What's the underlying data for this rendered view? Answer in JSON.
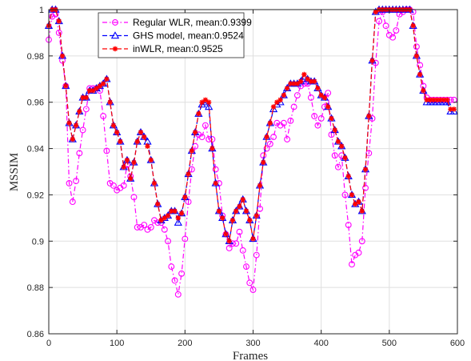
{
  "chart_data": {
    "type": "line",
    "xlabel": "Frames",
    "ylabel": "MSSIM",
    "xlim": [
      0,
      600
    ],
    "ylim": [
      0.86,
      1
    ],
    "xticks": [
      0,
      100,
      200,
      300,
      400,
      500,
      600
    ],
    "yticks": [
      0.86,
      0.88,
      0.9,
      0.92,
      0.94,
      0.96,
      0.98,
      1
    ],
    "ytick_labels": [
      "0.86",
      "0.88",
      "0.9",
      "0.92",
      "0.94",
      "0.96",
      "0.98",
      "1"
    ],
    "grid": true,
    "legend_position": "top-center",
    "series": [
      {
        "name": "Regular WLR, mean:0.9399",
        "color": "#ff00ff",
        "line_style": "dash-dot",
        "marker": "circle",
        "x": [
          0,
          5,
          10,
          15,
          20,
          25,
          30,
          35,
          40,
          45,
          50,
          55,
          60,
          65,
          70,
          75,
          80,
          85,
          90,
          95,
          100,
          105,
          110,
          115,
          120,
          125,
          130,
          135,
          140,
          145,
          150,
          155,
          160,
          165,
          170,
          175,
          180,
          185,
          190,
          195,
          200,
          205,
          210,
          215,
          220,
          225,
          230,
          235,
          240,
          245,
          250,
          255,
          260,
          265,
          270,
          275,
          280,
          285,
          290,
          295,
          300,
          305,
          310,
          315,
          320,
          325,
          330,
          335,
          340,
          345,
          350,
          355,
          360,
          365,
          370,
          375,
          380,
          385,
          390,
          395,
          400,
          405,
          410,
          415,
          420,
          425,
          430,
          435,
          440,
          445,
          450,
          455,
          460,
          465,
          470,
          475,
          480,
          485,
          490,
          495,
          500,
          505,
          510,
          515,
          520,
          525,
          530,
          535,
          540,
          545,
          550,
          555,
          560,
          565,
          570,
          575,
          580,
          585,
          590,
          595
        ],
        "y": [
          0.987,
          0.997,
          0.998,
          0.99,
          0.978,
          0.967,
          0.925,
          0.917,
          0.926,
          0.938,
          0.948,
          0.957,
          0.966,
          0.966,
          0.966,
          0.965,
          0.954,
          0.939,
          0.925,
          0.924,
          0.922,
          0.923,
          0.924,
          0.933,
          0.928,
          0.919,
          0.906,
          0.906,
          0.907,
          0.905,
          0.906,
          0.909,
          0.908,
          0.908,
          0.905,
          0.9,
          0.889,
          0.883,
          0.877,
          0.886,
          0.901,
          0.917,
          0.931,
          0.941,
          0.946,
          0.945,
          0.95,
          0.944,
          0.944,
          0.931,
          0.925,
          0.911,
          0.903,
          0.897,
          0.899,
          0.899,
          0.904,
          0.896,
          0.889,
          0.882,
          0.879,
          0.894,
          0.914,
          0.937,
          0.94,
          0.942,
          0.945,
          0.951,
          0.95,
          0.951,
          0.944,
          0.952,
          0.958,
          0.963,
          0.967,
          0.968,
          0.968,
          0.962,
          0.954,
          0.95,
          0.953,
          0.958,
          0.964,
          0.946,
          0.937,
          0.932,
          0.937,
          0.92,
          0.907,
          0.89,
          0.894,
          0.895,
          0.9,
          0.923,
          0.938,
          0.953,
          0.977,
          0.995,
          0.999,
          0.993,
          0.989,
          0.988,
          0.991,
          0.998,
          0.999,
          1.0,
          1.0,
          0.999,
          0.984,
          0.976,
          0.967,
          0.962,
          0.961,
          0.961,
          0.961,
          0.961,
          0.961,
          0.961,
          0.961,
          0.961
        ]
      },
      {
        "name": "GHS model, mean:0.9524",
        "color": "#0000ff",
        "line_style": "dashed",
        "marker": "triangle",
        "x": [
          0,
          5,
          10,
          15,
          20,
          25,
          30,
          35,
          40,
          45,
          50,
          55,
          60,
          65,
          70,
          75,
          80,
          85,
          90,
          95,
          100,
          105,
          110,
          115,
          120,
          125,
          130,
          135,
          140,
          145,
          150,
          155,
          160,
          165,
          170,
          175,
          180,
          185,
          190,
          195,
          200,
          205,
          210,
          215,
          220,
          225,
          230,
          235,
          240,
          245,
          250,
          255,
          260,
          265,
          270,
          275,
          280,
          285,
          290,
          295,
          300,
          305,
          310,
          315,
          320,
          325,
          330,
          335,
          340,
          345,
          350,
          355,
          360,
          365,
          370,
          375,
          380,
          385,
          390,
          395,
          400,
          405,
          410,
          415,
          420,
          425,
          430,
          435,
          440,
          445,
          450,
          455,
          460,
          465,
          470,
          475,
          480,
          485,
          490,
          495,
          500,
          505,
          510,
          515,
          520,
          525,
          530,
          535,
          540,
          545,
          550,
          555,
          560,
          565,
          570,
          575,
          580,
          585,
          590,
          595
        ],
        "y": [
          0.993,
          1.0,
          1.0,
          0.995,
          0.98,
          0.967,
          0.951,
          0.944,
          0.95,
          0.956,
          0.962,
          0.962,
          0.965,
          0.965,
          0.966,
          0.967,
          0.968,
          0.97,
          0.96,
          0.95,
          0.947,
          0.943,
          0.932,
          0.935,
          0.927,
          0.934,
          0.943,
          0.947,
          0.945,
          0.943,
          0.935,
          0.925,
          0.916,
          0.909,
          0.91,
          0.911,
          0.913,
          0.913,
          0.908,
          0.912,
          0.919,
          0.929,
          0.939,
          0.947,
          0.955,
          0.959,
          0.96,
          0.958,
          0.94,
          0.925,
          0.913,
          0.91,
          0.903,
          0.9,
          0.909,
          0.913,
          0.915,
          0.918,
          0.913,
          0.909,
          0.901,
          0.911,
          0.924,
          0.934,
          0.945,
          0.951,
          0.957,
          0.959,
          0.96,
          0.963,
          0.966,
          0.968,
          0.968,
          0.968,
          0.969,
          0.971,
          0.97,
          0.969,
          0.969,
          0.966,
          0.963,
          0.962,
          0.958,
          0.953,
          0.948,
          0.943,
          0.941,
          0.936,
          0.928,
          0.92,
          0.916,
          0.917,
          0.913,
          0.931,
          0.954,
          0.978,
          0.999,
          1.0,
          1.0,
          1.0,
          1.0,
          1.0,
          1.0,
          1.0,
          1.0,
          1.0,
          1.0,
          0.993,
          0.98,
          0.972,
          0.965,
          0.96,
          0.96,
          0.96,
          0.96,
          0.96,
          0.96,
          0.96,
          0.956,
          0.956
        ]
      },
      {
        "name": "inWLR, mean:0.9525",
        "color": "#ff0000",
        "line_style": "dashed",
        "marker": "star",
        "x": [
          0,
          5,
          10,
          15,
          20,
          25,
          30,
          35,
          40,
          45,
          50,
          55,
          60,
          65,
          70,
          75,
          80,
          85,
          90,
          95,
          100,
          105,
          110,
          115,
          120,
          125,
          130,
          135,
          140,
          145,
          150,
          155,
          160,
          165,
          170,
          175,
          180,
          185,
          190,
          195,
          200,
          205,
          210,
          215,
          220,
          225,
          230,
          235,
          240,
          245,
          250,
          255,
          260,
          265,
          270,
          275,
          280,
          285,
          290,
          295,
          300,
          305,
          310,
          315,
          320,
          325,
          330,
          335,
          340,
          345,
          350,
          355,
          360,
          365,
          370,
          375,
          380,
          385,
          390,
          395,
          400,
          405,
          410,
          415,
          420,
          425,
          430,
          435,
          440,
          445,
          450,
          455,
          460,
          465,
          470,
          475,
          480,
          485,
          490,
          495,
          500,
          505,
          510,
          515,
          520,
          525,
          530,
          535,
          540,
          545,
          550,
          555,
          560,
          565,
          570,
          575,
          580,
          585,
          590,
          595
        ],
        "y": [
          0.993,
          1.0,
          1.0,
          0.995,
          0.98,
          0.967,
          0.951,
          0.944,
          0.95,
          0.956,
          0.962,
          0.962,
          0.965,
          0.965,
          0.966,
          0.967,
          0.968,
          0.97,
          0.96,
          0.95,
          0.947,
          0.943,
          0.932,
          0.935,
          0.927,
          0.934,
          0.943,
          0.947,
          0.945,
          0.941,
          0.935,
          0.925,
          0.916,
          0.909,
          0.91,
          0.911,
          0.913,
          0.913,
          0.91,
          0.912,
          0.919,
          0.929,
          0.939,
          0.947,
          0.955,
          0.96,
          0.961,
          0.96,
          0.94,
          0.925,
          0.913,
          0.91,
          0.903,
          0.9,
          0.909,
          0.913,
          0.915,
          0.918,
          0.913,
          0.909,
          0.901,
          0.911,
          0.924,
          0.934,
          0.945,
          0.951,
          0.958,
          0.96,
          0.961,
          0.963,
          0.966,
          0.968,
          0.968,
          0.968,
          0.969,
          0.972,
          0.97,
          0.969,
          0.969,
          0.966,
          0.963,
          0.962,
          0.958,
          0.953,
          0.948,
          0.943,
          0.941,
          0.936,
          0.928,
          0.92,
          0.916,
          0.917,
          0.913,
          0.931,
          0.954,
          0.978,
          0.999,
          1.0,
          1.0,
          1.0,
          1.0,
          1.0,
          1.0,
          1.0,
          1.0,
          1.0,
          1.0,
          0.993,
          0.98,
          0.972,
          0.965,
          0.961,
          0.961,
          0.961,
          0.961,
          0.961,
          0.961,
          0.961,
          0.957,
          0.957
        ]
      }
    ]
  }
}
